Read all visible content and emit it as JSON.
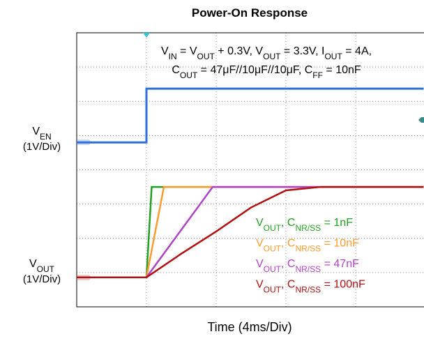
{
  "chart_data": {
    "type": "line",
    "title": "Power-On Response",
    "annotation": [
      [
        "V",
        "IN",
        " = V",
        "OUT",
        " + 0.3V, V",
        "OUT",
        " = 3.3V, I",
        "OUT",
        " = 4A,"
      ],
      [
        "C",
        "OUT",
        " = 47μF//10μF//10μF, C",
        "FF",
        " = 10nF"
      ]
    ],
    "xlabel": "Time (4ms/Div)",
    "channel_labels": [
      {
        "name": [
          "V",
          "EN"
        ],
        "scale": "(1V/Div)"
      },
      {
        "name": [
          "V",
          "OUT"
        ],
        "scale": "(1V/Div)"
      }
    ],
    "xlim": [
      -4,
      15.9
    ],
    "ylim": [
      0,
      8
    ],
    "xticks": [
      -4,
      0,
      4,
      8,
      12
    ],
    "yticks": [
      0,
      1,
      2,
      3,
      4,
      5,
      6,
      7,
      8
    ],
    "grid": true,
    "series": [
      {
        "color": "#2f6fdc",
        "x": [
          -4,
          0,
          0,
          15.9
        ],
        "values": [
          4.8,
          4.8,
          6.37,
          6.37
        ]
      },
      {
        "name": [
          "V",
          "OUT",
          ", C",
          "NR/SS",
          " = 1nF"
        ],
        "color": "#22a022",
        "x": [
          -4,
          0,
          0.3,
          15.9
        ],
        "values": [
          0.86,
          0.86,
          3.5,
          3.5
        ]
      },
      {
        "name": [
          "V",
          "OUT",
          ", C",
          "NR/SS",
          " = 10nF"
        ],
        "color": "#ff9a2e",
        "x": [
          0,
          1,
          15.9
        ],
        "values": [
          0.86,
          3.5,
          3.5
        ]
      },
      {
        "name": [
          "V",
          "OUT",
          ", C",
          "NR/SS",
          " = 47nF"
        ],
        "color": "#b040c8",
        "x": [
          0,
          3.8,
          15.9
        ],
        "values": [
          0.86,
          3.5,
          3.5
        ]
      },
      {
        "name": [
          "V",
          "OUT",
          ", C",
          "NR/SS",
          " = 100nF"
        ],
        "color": "#b01010",
        "x": [
          -4,
          0,
          2,
          4,
          6,
          8,
          10,
          15.9
        ],
        "values": [
          0.86,
          0.86,
          1.55,
          2.2,
          2.9,
          3.4,
          3.5,
          3.5
        ]
      }
    ]
  }
}
